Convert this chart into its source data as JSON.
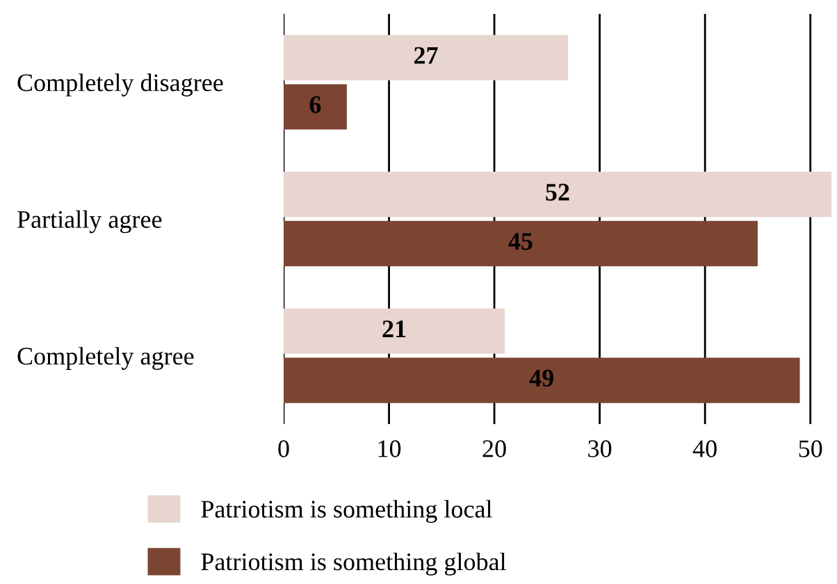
{
  "chart_data": {
    "type": "bar",
    "orientation": "horizontal",
    "categories": [
      "Completely disagree",
      "Partially agree",
      "Completely agree"
    ],
    "series": [
      {
        "name": "Patriotism is something local",
        "color": "#e8d5cf",
        "values": [
          27,
          52,
          21
        ]
      },
      {
        "name": "Patriotism is something global",
        "color": "#7b4532",
        "values": [
          6,
          45,
          49
        ]
      }
    ],
    "xlim": [
      0,
      52
    ],
    "xticks": [
      0,
      10,
      20,
      30,
      40,
      50
    ],
    "grid": "x",
    "legend": "bottom",
    "data_labels": true
  }
}
